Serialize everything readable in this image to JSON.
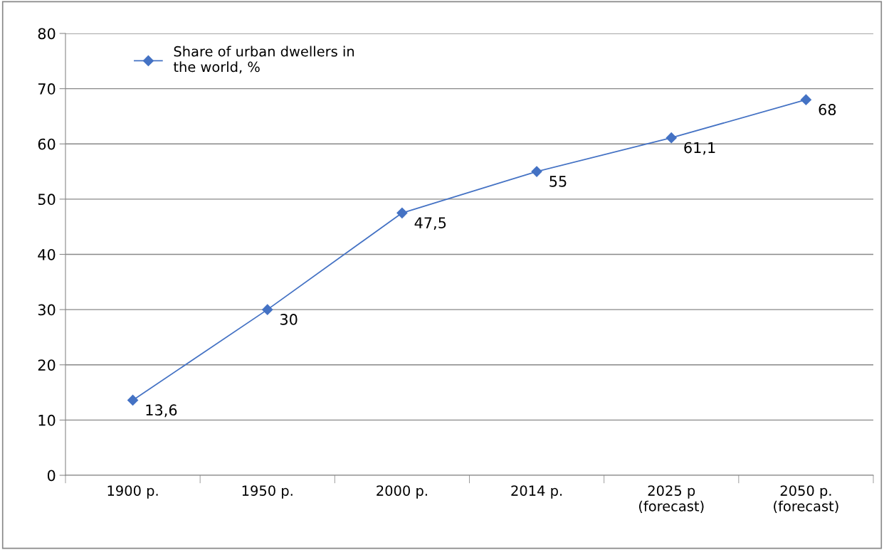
{
  "chart_data": {
    "type": "line",
    "categories": [
      "1900 p.",
      "1950 p.",
      "2000 p.",
      "2014 p.",
      "2025 p\n(forecast)",
      "2050 p.\n(forecast)"
    ],
    "series": [
      {
        "name": "Share of urban dwellers in\nthe world, %",
        "color": "#4472c4",
        "values": [
          13.6,
          30,
          47.5,
          55,
          61.1,
          68
        ],
        "value_labels": [
          "13,6",
          "30",
          "47,5",
          "55",
          "61,1",
          "68"
        ]
      }
    ],
    "ylim": [
      0,
      80
    ],
    "yticks": [
      0,
      10,
      20,
      30,
      40,
      50,
      60,
      70,
      80
    ],
    "grid": "y",
    "legend": "top left",
    "marker": "diamond",
    "line_style": "solid"
  }
}
